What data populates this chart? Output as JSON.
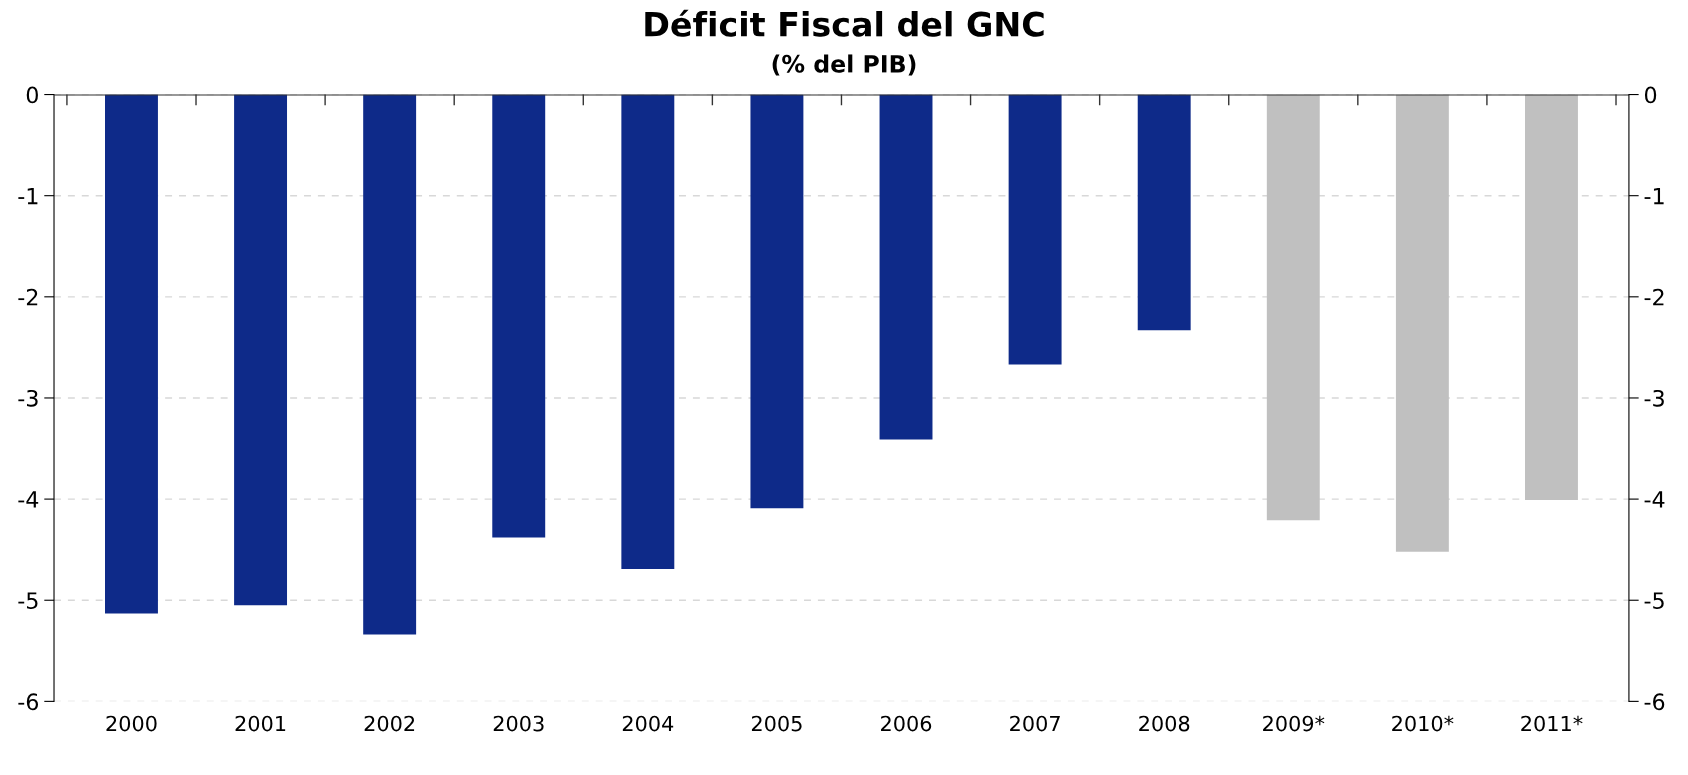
{
  "chart_data": {
    "type": "bar",
    "title": "Déficit Fiscal del GNC",
    "subtitle": "(% del PIB)",
    "categories": [
      "2000",
      "2001",
      "2002",
      "2003",
      "2004",
      "2005",
      "2006",
      "2007",
      "2008",
      "2009*",
      "2010*",
      "2011*"
    ],
    "values": [
      -5.13,
      -5.05,
      -5.34,
      -4.38,
      -4.69,
      -4.09,
      -3.41,
      -2.67,
      -2.33,
      -4.21,
      -4.52,
      -4.01
    ],
    "colors": [
      "#0e2a89",
      "#0e2a89",
      "#0e2a89",
      "#0e2a89",
      "#0e2a89",
      "#0e2a89",
      "#0e2a89",
      "#0e2a89",
      "#0e2a89",
      "#c0c0c0",
      "#c0c0c0",
      "#c0c0c0"
    ],
    "ylim": [
      -6,
      0
    ],
    "yticks": [
      -6,
      -5,
      -4,
      -3,
      -2,
      -1,
      0
    ],
    "y2lim": [
      -6,
      0
    ],
    "y2ticks": [
      -6,
      -5,
      -4,
      -3,
      -2,
      -1,
      0
    ],
    "grid": "y"
  }
}
